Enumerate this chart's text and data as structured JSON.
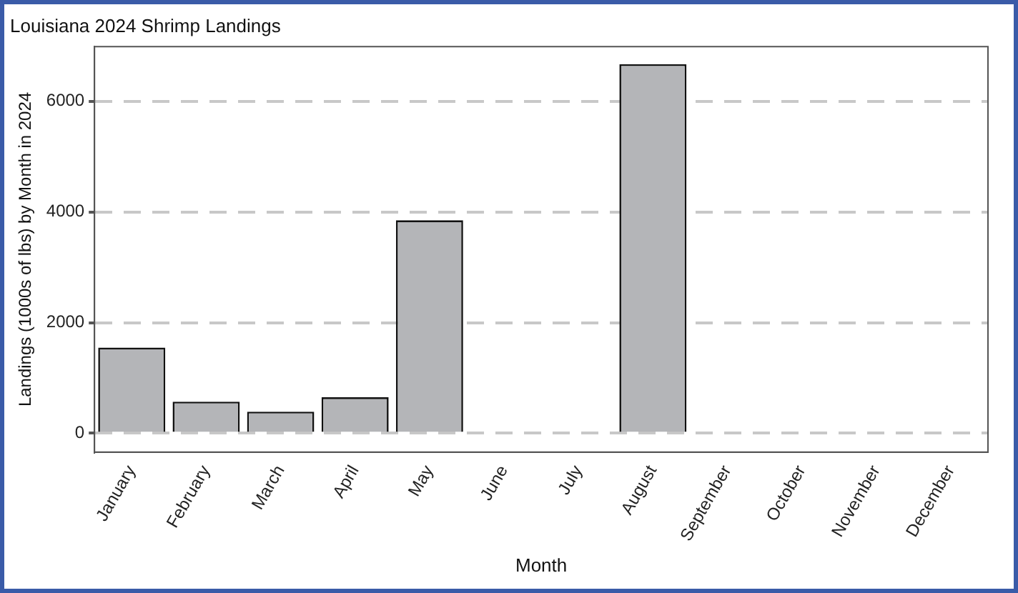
{
  "chart_data": {
    "type": "bar",
    "title": "Louisiana 2024 Shrimp Landings",
    "xlabel": "Month",
    "ylabel": "Landings (1000s of lbs) by Month in 2024",
    "categories": [
      "January",
      "February",
      "March",
      "April",
      "May",
      "June",
      "July",
      "August",
      "September",
      "October",
      "November",
      "December"
    ],
    "values": [
      1550,
      570,
      390,
      650,
      3850,
      null,
      null,
      6670,
      null,
      null,
      null,
      null
    ],
    "color": "#b4b5b8",
    "ylim": [
      -340,
      6990
    ],
    "yticks": [
      0,
      2000,
      4000,
      6000
    ],
    "grid": "y",
    "legend": false
  }
}
